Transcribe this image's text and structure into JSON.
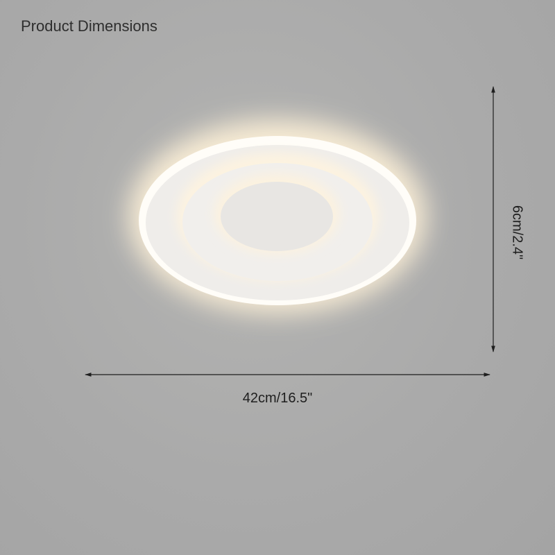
{
  "title": "Product Dimensions",
  "dimensions": {
    "width_label": "42cm/16.5\"",
    "height_label": "6cm/2.4\""
  },
  "colors": {
    "background": "#a9a9a9",
    "lamp_white": "#f4f4f2",
    "glow": "#fff1d6",
    "arrow": "#1e1e1e"
  }
}
